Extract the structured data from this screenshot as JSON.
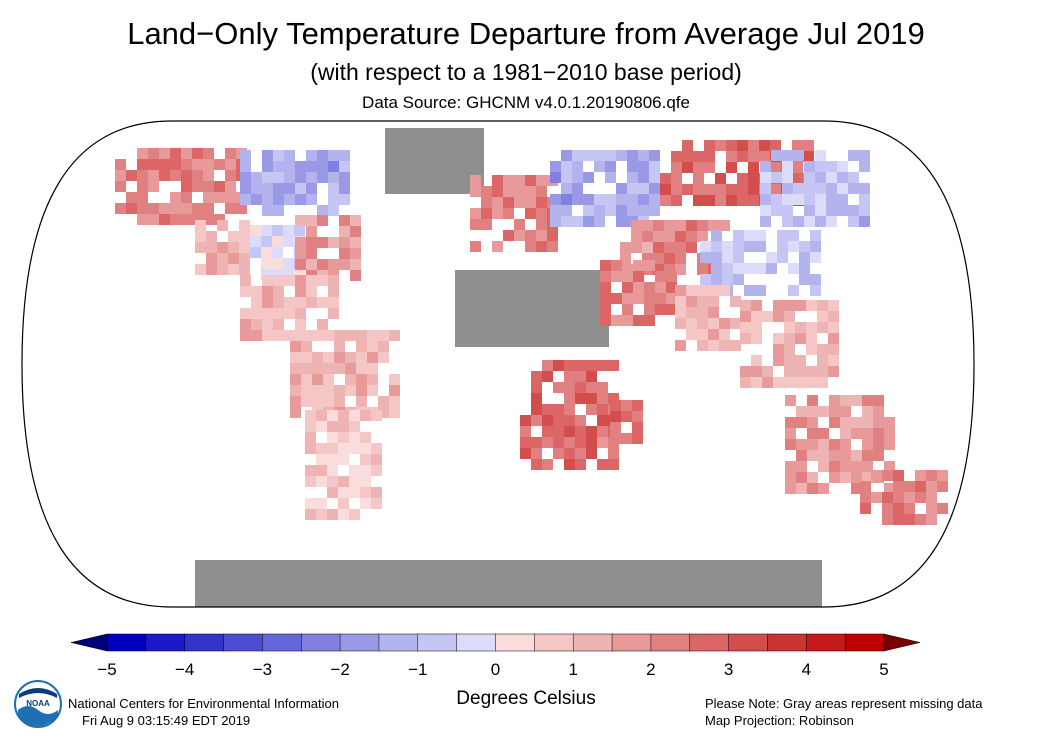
{
  "title": "Land−Only Temperature Departure from Average Jul 2019",
  "subtitle": "(with respect to a 1981−2010 base period)",
  "source": "Data Source: GHCNM v4.0.1.20190806.qfe",
  "footer": {
    "org": "National Centers for Environmental Information",
    "timestamp": "Fri Aug  9 03:15:49 EDT 2019",
    "note": "Please Note: Gray areas represent missing data",
    "projection": "Map Projection: Robinson",
    "logo_text": "NOAA"
  },
  "chart_data": {
    "type": "heatmap",
    "map_projection": "Robinson",
    "units_label": "Degrees Celsius",
    "colorbar": {
      "min": -5,
      "max": 5,
      "step": 0.5,
      "ticks": [
        "−5",
        "−4",
        "−3",
        "−2",
        "−1",
        "0",
        "1",
        "2",
        "3",
        "4",
        "5"
      ],
      "tick_values": [
        -5,
        -4,
        -3,
        -2,
        -1,
        0,
        1,
        2,
        3,
        4,
        5
      ],
      "colors": [
        "#0000bd",
        "#1a1ac8",
        "#3333cc",
        "#4d4dd4",
        "#6666dc",
        "#8080e0",
        "#9999e6",
        "#b3b3ee",
        "#c6c6f5",
        "#dcdcfa",
        "#fadcdc",
        "#f5c6c6",
        "#eeb3b3",
        "#e89999",
        "#e08080",
        "#dc6666",
        "#d44d4d",
        "#cc3333",
        "#c61a1a",
        "#bd0000"
      ],
      "extend_low": "#00007a",
      "extend_high": "#7a0000"
    },
    "missing_color": "#8f8f8f",
    "regions": [
      {
        "name": "Alaska / NW Canada",
        "anomaly": 2.0
      },
      {
        "name": "Northern Canada (Hudson Bay)",
        "anomaly": -1.5
      },
      {
        "name": "Greenland",
        "anomaly": null
      },
      {
        "name": "Western USA",
        "anomaly": 1.0
      },
      {
        "name": "Central USA",
        "anomaly": -0.5
      },
      {
        "name": "Eastern USA",
        "anomaly": 1.5
      },
      {
        "name": "Mexico / Central America",
        "anomaly": 1.0
      },
      {
        "name": "Northern South America",
        "anomaly": 1.0
      },
      {
        "name": "Southern South America",
        "anomaly": 0.5
      },
      {
        "name": "Western Europe",
        "anomaly": 2.0
      },
      {
        "name": "Northeast Europe / Western Russia",
        "anomaly": -1.5
      },
      {
        "name": "Central Asia",
        "anomaly": 2.0
      },
      {
        "name": "Siberia",
        "anomaly": 2.5
      },
      {
        "name": "Eastern Siberia",
        "anomaly": -1.0
      },
      {
        "name": "China / Mongolia",
        "anomaly": -1.0
      },
      {
        "name": "Northern Africa",
        "anomaly": null
      },
      {
        "name": "Middle East",
        "anomaly": 2.0
      },
      {
        "name": "India",
        "anomaly": 1.0
      },
      {
        "name": "Southeast Asia",
        "anomaly": 1.0
      },
      {
        "name": "Southern Africa",
        "anomaly": 2.5
      },
      {
        "name": "Madagascar",
        "anomaly": 2.5
      },
      {
        "name": "Australia",
        "anomaly": 1.5
      },
      {
        "name": "New Zealand",
        "anomaly": 2.0
      },
      {
        "name": "Antarctica",
        "anomaly": null
      }
    ]
  }
}
